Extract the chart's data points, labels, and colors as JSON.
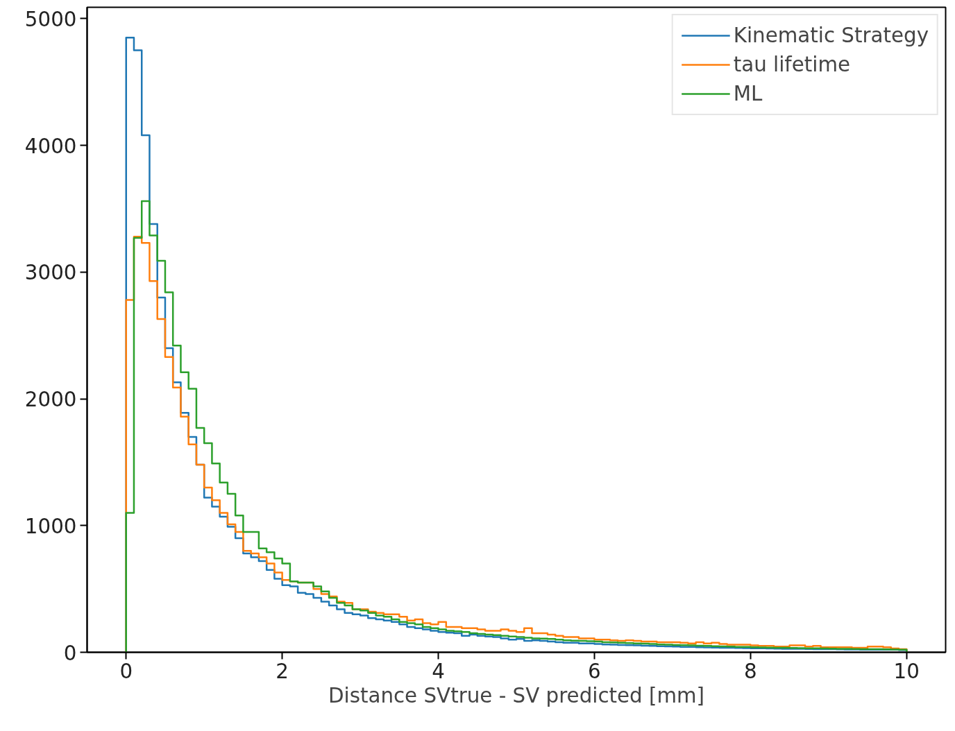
{
  "chart_data": {
    "type": "histogram",
    "xlabel": "Distance SVtrue - SV predicted [mm]",
    "bins": [
      0,
      0.1,
      0.2,
      0.3,
      0.4,
      0.5,
      0.6,
      0.7,
      0.8,
      0.9,
      1.0,
      1.1,
      1.2,
      1.3,
      1.4,
      1.5,
      1.6,
      1.7,
      1.8,
      1.9,
      2.0,
      2.1,
      2.2,
      2.3,
      2.4,
      2.5,
      2.6,
      2.7,
      2.8,
      2.9,
      3.0,
      3.1,
      3.2,
      3.3,
      3.4,
      3.5,
      3.6,
      3.7,
      3.8,
      3.9,
      4.0,
      4.1,
      4.2,
      4.3,
      4.4,
      4.5,
      4.6,
      4.7,
      4.8,
      4.9,
      5.0,
      5.1,
      5.2,
      5.3,
      5.4,
      5.5,
      5.6,
      5.7,
      5.8,
      5.9,
      6.0,
      6.1,
      6.2,
      6.3,
      6.4,
      6.5,
      6.6,
      6.7,
      6.8,
      6.9,
      7.0,
      7.1,
      7.2,
      7.3,
      7.4,
      7.5,
      7.6,
      7.7,
      7.8,
      7.9,
      8.0,
      8.1,
      8.2,
      8.3,
      8.4,
      8.5,
      8.6,
      8.7,
      8.8,
      8.9,
      9.0,
      9.1,
      9.2,
      9.3,
      9.4,
      9.5,
      9.6,
      9.7,
      9.8,
      9.9,
      10.0
    ],
    "series": [
      {
        "name": "Kinematic Strategy",
        "color": "#1f77b4",
        "values": [
          4850,
          4750,
          4080,
          3380,
          2800,
          2400,
          2130,
          1890,
          1700,
          1480,
          1220,
          1150,
          1070,
          990,
          900,
          780,
          750,
          720,
          650,
          580,
          530,
          520,
          470,
          460,
          430,
          400,
          370,
          340,
          310,
          300,
          290,
          270,
          260,
          250,
          240,
          220,
          200,
          190,
          180,
          170,
          160,
          155,
          150,
          130,
          140,
          130,
          125,
          120,
          110,
          100,
          105,
          90,
          95,
          90,
          85,
          80,
          75,
          75,
          70,
          70,
          65,
          62,
          60,
          58,
          56,
          55,
          52,
          50,
          48,
          46,
          45,
          43,
          42,
          40,
          38,
          37,
          36,
          35,
          34,
          33,
          32,
          31,
          30,
          29,
          28,
          28,
          27,
          26,
          25,
          25,
          24,
          23,
          22,
          22,
          21,
          21,
          20,
          20,
          20,
          18
        ]
      },
      {
        "name": "tau lifetime",
        "color": "#ff7f0e",
        "values": [
          2780,
          3280,
          3230,
          2930,
          2630,
          2330,
          2090,
          1860,
          1640,
          1480,
          1300,
          1200,
          1100,
          1010,
          950,
          800,
          780,
          750,
          700,
          630,
          570,
          560,
          550,
          550,
          500,
          460,
          440,
          400,
          390,
          340,
          340,
          320,
          310,
          300,
          300,
          280,
          250,
          260,
          230,
          220,
          240,
          200,
          200,
          190,
          190,
          180,
          170,
          170,
          180,
          170,
          160,
          190,
          150,
          150,
          140,
          130,
          120,
          120,
          110,
          110,
          100,
          100,
          95,
          90,
          95,
          90,
          85,
          85,
          80,
          80,
          80,
          75,
          70,
          80,
          70,
          75,
          65,
          60,
          60,
          60,
          55,
          50,
          50,
          45,
          45,
          55,
          55,
          45,
          50,
          40,
          40,
          40,
          40,
          35,
          35,
          45,
          45,
          40,
          30,
          25
        ]
      },
      {
        "name": "ML",
        "color": "#2ca02c",
        "values": [
          1100,
          3270,
          3560,
          3290,
          3090,
          2840,
          2420,
          2210,
          2080,
          1770,
          1650,
          1490,
          1340,
          1250,
          1080,
          950,
          950,
          820,
          790,
          740,
          700,
          560,
          550,
          550,
          520,
          480,
          430,
          390,
          370,
          340,
          330,
          310,
          290,
          280,
          260,
          240,
          230,
          220,
          200,
          190,
          180,
          170,
          165,
          160,
          150,
          145,
          140,
          135,
          130,
          125,
          120,
          115,
          110,
          108,
          105,
          100,
          95,
          92,
          90,
          88,
          85,
          80,
          78,
          75,
          72,
          70,
          68,
          65,
          62,
          60,
          58,
          56,
          55,
          52,
          50,
          48,
          46,
          45,
          43,
          42,
          40,
          38,
          37,
          36,
          35,
          34,
          33,
          32,
          31,
          30,
          29,
          28,
          27,
          26,
          25,
          25,
          24,
          23,
          22,
          20
        ]
      }
    ],
    "xlim": [
      -0.5,
      10.5
    ],
    "ylim": [
      0,
      5090
    ],
    "xticks": [
      0,
      2,
      4,
      6,
      8,
      10
    ],
    "yticks": [
      0,
      1000,
      2000,
      3000,
      4000,
      5000
    ],
    "grid": false,
    "legend": "top right"
  }
}
